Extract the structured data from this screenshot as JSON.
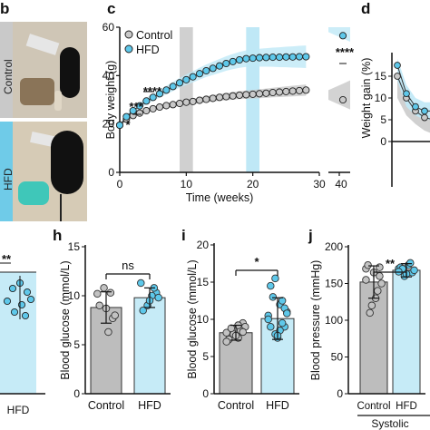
{
  "panels": {
    "b": {
      "letter": "b",
      "groups": [
        "Control",
        "HFD"
      ]
    },
    "c": {
      "letter": "c"
    },
    "d": {
      "letter": "d"
    },
    "h": {
      "letter": "h"
    },
    "i": {
      "letter": "i"
    },
    "j": {
      "letter": "j"
    },
    "g_fragment": {
      "sig": "**",
      "xtick": "HFD"
    }
  },
  "colors": {
    "control": "#b3b3b3",
    "hfd": "#5ec8ea",
    "hfd_band": "#bfe8f6",
    "gray_band": "#d0d0d0",
    "control_band": "#c8c8c8"
  },
  "chart_data": [
    {
      "panel": "c",
      "type": "line",
      "ylabel": "Body weight (g)",
      "xlabel": "Time (weeks)",
      "xlim": [
        0,
        30
      ],
      "ylim": [
        0,
        60
      ],
      "yticks": [
        "0",
        "20",
        "40",
        "60"
      ],
      "xticks": [
        "0",
        "10",
        "20",
        "30"
      ],
      "break_axis_tick": "40",
      "shaded_periods": [
        {
          "from": 9,
          "to": 11,
          "color": "gray"
        },
        {
          "from": 19,
          "to": 21,
          "color": "blue"
        }
      ],
      "legend": [
        "Control",
        "HFD"
      ],
      "significance": [
        "*",
        "***",
        "****",
        "****"
      ],
      "series": [
        {
          "name": "Control",
          "x": [
            0,
            1,
            2,
            3,
            4,
            5,
            6,
            7,
            8,
            9,
            10,
            11,
            12,
            13,
            14,
            15,
            16,
            17,
            18,
            19,
            20,
            21,
            22,
            23,
            24,
            25,
            26,
            27,
            28
          ],
          "values": [
            19.5,
            22,
            23.5,
            24.5,
            25.5,
            26.3,
            27,
            27.6,
            28,
            28.5,
            29,
            29.3,
            29.8,
            30.2,
            30.6,
            31,
            31.3,
            31.6,
            31.9,
            32.1,
            32.3,
            32.5,
            32.7,
            33,
            33.2,
            33.4,
            33.6,
            33.8,
            34
          ]
        },
        {
          "name": "HFD",
          "x": [
            0,
            1,
            2,
            3,
            4,
            5,
            6,
            7,
            8,
            9,
            10,
            11,
            12,
            13,
            14,
            15,
            16,
            17,
            18,
            19,
            20,
            21,
            22,
            23,
            24,
            25,
            26,
            27,
            28
          ],
          "values": [
            19.5,
            23,
            25.5,
            27.5,
            29.5,
            31,
            32.5,
            34,
            35.5,
            37,
            38.3,
            39.5,
            40.8,
            42,
            43,
            44,
            45,
            45.8,
            46.5,
            47,
            47.2,
            47.4,
            47.5,
            47.6,
            47.6,
            47.7,
            47.7,
            47.8,
            47.8
          ]
        }
      ],
      "end_points": {
        "Control": 30,
        "HFD": 56.5
      }
    },
    {
      "panel": "d",
      "type": "line",
      "ylabel": "Weight gain (%)",
      "yticks": [
        "0",
        "5",
        "10",
        "15"
      ],
      "ylim": [
        0,
        20
      ],
      "series": [
        {
          "name": "Control",
          "values": [
            15,
            10,
            7,
            5.5,
            5
          ]
        },
        {
          "name": "HFD",
          "values": [
            17.5,
            11,
            8,
            7,
            7
          ]
        }
      ]
    },
    {
      "panel": "h",
      "type": "bar",
      "ylabel": "Blood glucose (mmol/L)",
      "categories": [
        "Control",
        "HFD"
      ],
      "ylim": [
        0,
        15
      ],
      "yticks": [
        "0",
        "5",
        "10",
        "15"
      ],
      "values": [
        8.8,
        9.8
      ],
      "errors": [
        1.6,
        1.0
      ],
      "points": [
        [
          10.2,
          7.7,
          6.3,
          10.8,
          9.0,
          8.0,
          10.3,
          8.7
        ],
        [
          11.3,
          10.3,
          10.0,
          9.0,
          8.5,
          9.8,
          10.8,
          9.5
        ]
      ],
      "significance": "ns"
    },
    {
      "panel": "i",
      "type": "bar",
      "ylabel": "Blood glucose (mmol/L)",
      "categories": [
        "Control",
        "HFD"
      ],
      "ylim": [
        0,
        20
      ],
      "yticks": [
        "0",
        "5",
        "10",
        "15",
        "20"
      ],
      "values": [
        8.2,
        10.1
      ],
      "errors": [
        1.0,
        2.8
      ],
      "points": [
        [
          8.2,
          9.5,
          7.5,
          8.0,
          7.3,
          9.0,
          8.5,
          7.8,
          8.8,
          7.0,
          8.3,
          9.2
        ],
        [
          10.5,
          9.0,
          12.0,
          8.0,
          14.5,
          11.0,
          9.5,
          7.5,
          13.0,
          10.0,
          11.5,
          8.5,
          15.5,
          9.0,
          10.8,
          12.5,
          7.8
        ]
      ],
      "significance": "*"
    },
    {
      "panel": "j",
      "type": "bar",
      "ylabel": "Blood pressure (mmHg)",
      "categories": [
        "Control",
        "HFD"
      ],
      "group_label": "Systolic",
      "ylim": [
        0,
        200
      ],
      "yticks": [
        "0",
        "50",
        "100",
        "150",
        "200"
      ],
      "values": [
        152,
        168
      ],
      "errors": [
        22,
        9
      ],
      "points": [
        [
          170,
          160,
          130,
          120,
          175,
          150,
          140,
          165,
          110,
          155,
          172
        ],
        [
          170,
          165,
          175,
          160,
          172,
          168,
          178,
          163,
          170,
          166
        ]
      ],
      "significance": "**"
    }
  ]
}
